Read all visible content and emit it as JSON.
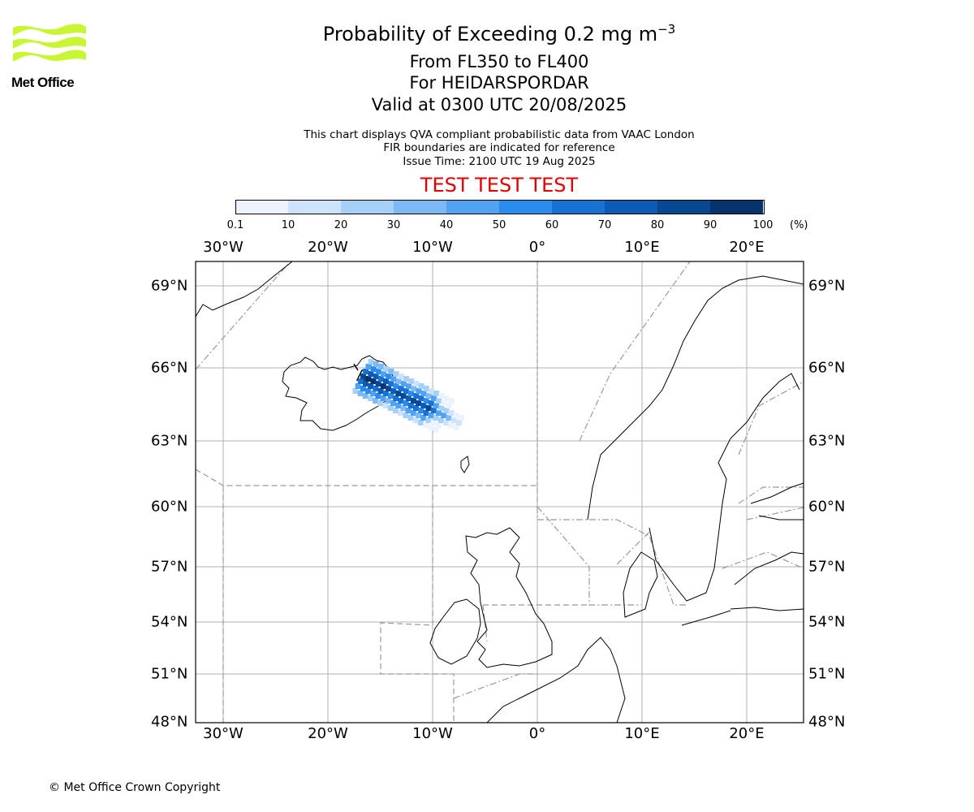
{
  "title": {
    "main": "Probability of Exceeding 0.2 mg m",
    "superscript": "−3",
    "levels": "From FL350 to FL400",
    "location": "For HEIDARSPORDAR",
    "valid": "Valid at 0300 UTC 20/08/2025"
  },
  "notes": {
    "line1": "This chart displays QVA compliant probabilistic data from VAAC London",
    "line2": "FIR boundaries are indicated for reference",
    "issue_time": "Issue Time: 2100 UTC 19 Aug 2025"
  },
  "test_banner": "TEST TEST TEST",
  "logo": {
    "text": "Met Office",
    "color": "#c8f534"
  },
  "colorbar": {
    "ticks": [
      "0.1",
      "10",
      "20",
      "30",
      "40",
      "50",
      "60",
      "70",
      "80",
      "90",
      "100"
    ],
    "unit": "(%)",
    "colors": [
      "#eaf3fe",
      "#cce3fb",
      "#a7d0f8",
      "#7dbaf5",
      "#4fa3f2",
      "#2a8cec",
      "#1872d4",
      "#0d5bb4",
      "#084893",
      "#06336b"
    ]
  },
  "map": {
    "lon_labels": [
      "30°W",
      "20°W",
      "10°W",
      "0°",
      "10°E",
      "20°E"
    ],
    "lat_labels": [
      "69°N",
      "66°N",
      "63°N",
      "60°N",
      "57°N",
      "54°N",
      "51°N",
      "48°N"
    ],
    "grid": true,
    "coastline_color": "#000000",
    "fir_boundary_color": "#999999"
  },
  "copyright": "© Met Office Crown Copyright"
}
